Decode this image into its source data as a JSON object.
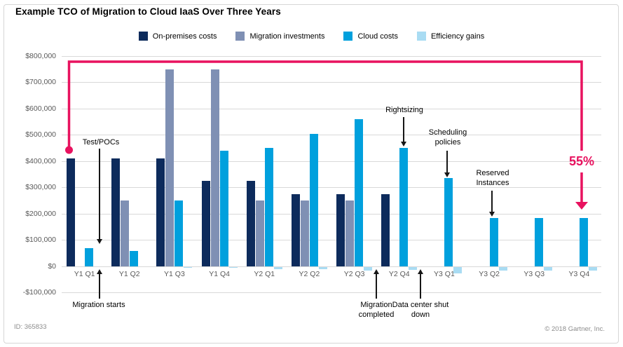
{
  "title": "Example TCO of Migration to Cloud IaaS Over Three Years",
  "colors": {
    "on_premises": "#0d2b5c",
    "migration": "#7f90b4",
    "cloud": "#00a0dd",
    "efficiency": "#a9dcf3",
    "highlight_pink": "#e8125f",
    "gridline": "#d9d9d9",
    "axis_text": "#595959"
  },
  "annotations": {
    "test_pocs": "Test/POCs",
    "migration_starts": "Migration starts",
    "rightsizing": "Rightsizing",
    "scheduling_policies": "Scheduling policies",
    "reserved_instances": "Reserved Instances",
    "migration_completed": "Migration completed",
    "data_center_shut_down": "Data center shut down",
    "reduction_pct": "55%"
  },
  "footer": {
    "doc_id": "ID: 365833",
    "copyright": "© 2018 Gartner, Inc."
  },
  "chart_data": {
    "type": "bar",
    "title": "Example TCO of Migration to Cloud IaaS Over Three Years",
    "categories": [
      "Y1 Q1",
      "Y1 Q2",
      "Y1 Q3",
      "Y1 Q4",
      "Y2 Q1",
      "Y2 Q2",
      "Y2 Q3",
      "Y2 Q4",
      "Y3 Q1",
      "Y3 Q2",
      "Y3 Q3",
      "Y3 Q4"
    ],
    "series": [
      {
        "name": "On-premises costs",
        "color": "#0d2b5c",
        "values": [
          410000,
          410000,
          410000,
          325000,
          325000,
          275000,
          275000,
          275000,
          0,
          0,
          0,
          0
        ]
      },
      {
        "name": "Migration investments",
        "color": "#7f90b4",
        "values": [
          0,
          250000,
          750000,
          750000,
          250000,
          250000,
          250000,
          0,
          0,
          0,
          0,
          0
        ]
      },
      {
        "name": "Cloud costs",
        "color": "#00a0dd",
        "values": [
          70000,
          60000,
          250000,
          440000,
          450000,
          505000,
          560000,
          450000,
          335000,
          185000,
          185000,
          185000
        ]
      },
      {
        "name": "Efficiency gains",
        "color": "#a9dcf3",
        "values": [
          0,
          0,
          -5000,
          -5000,
          -8000,
          -10000,
          -15000,
          -12000,
          -25000,
          -15000,
          -15000,
          -15000
        ]
      }
    ],
    "ylim": [
      -100000,
      800000
    ],
    "yticks": [
      {
        "value": 800000,
        "label": "$800,000"
      },
      {
        "value": 700000,
        "label": "$700,000"
      },
      {
        "value": 600000,
        "label": "$600,000"
      },
      {
        "value": 500000,
        "label": "$500,000"
      },
      {
        "value": 400000,
        "label": "$400,000"
      },
      {
        "value": 300000,
        "label": "$300,000"
      },
      {
        "value": 200000,
        "label": "$200,000"
      },
      {
        "value": 100000,
        "label": "$100,000"
      },
      {
        "value": 0,
        "label": "$0"
      },
      {
        "value": -100000,
        "label": "-$100,000"
      }
    ],
    "grid": true,
    "legend_position": "top",
    "highlight": {
      "label": "55%",
      "color": "#e8125f"
    }
  }
}
